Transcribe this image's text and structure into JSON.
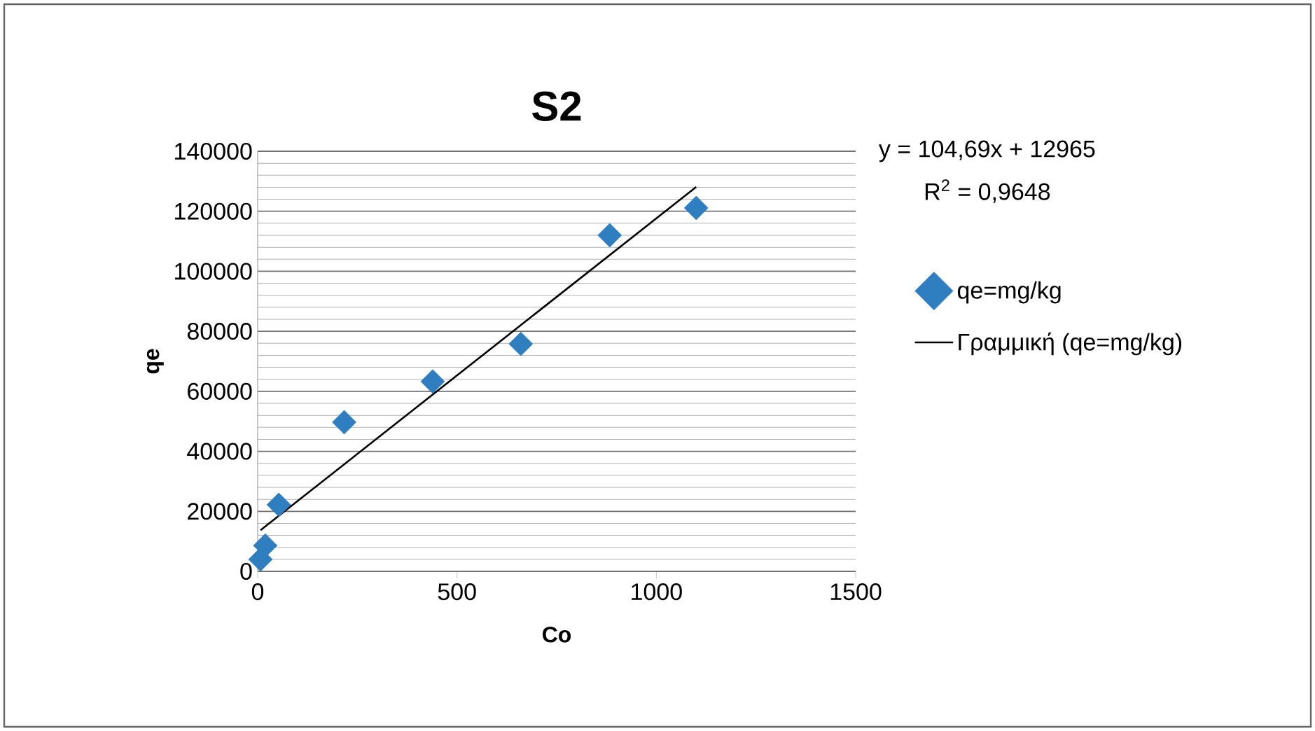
{
  "chart_data": {
    "type": "scatter",
    "title": "S2",
    "xlabel": "Co",
    "ylabel": "qe",
    "annotations": [
      "y = 104,69x + 12965",
      "R$^{2}$ = 0,9648"
    ],
    "xlim": [
      0,
      1500
    ],
    "xticks": [
      0,
      500,
      1000,
      1500
    ],
    "ylim": [
      0,
      140000
    ],
    "yticks": [
      0,
      20000,
      40000,
      60000,
      80000,
      100000,
      120000,
      140000
    ],
    "grid": "y",
    "legend": "right",
    "marker": "diamond",
    "series": [
      {
        "name": "qe=mg/kg",
        "color": "#2f7ec0",
        "x": [
          7,
          19,
          53,
          217,
          439,
          660,
          883,
          1100
        ],
        "values": [
          4000,
          8600,
          22200,
          49700,
          63300,
          75800,
          112000,
          121100
        ]
      },
      {
        "name": "Γραμμική (qe=mg/kg)",
        "type": "line",
        "color": "#000000",
        "marker": "none",
        "line_style": "solid",
        "x": [
          7,
          1100
        ],
        "values": [
          13700,
          128100
        ]
      }
    ]
  }
}
